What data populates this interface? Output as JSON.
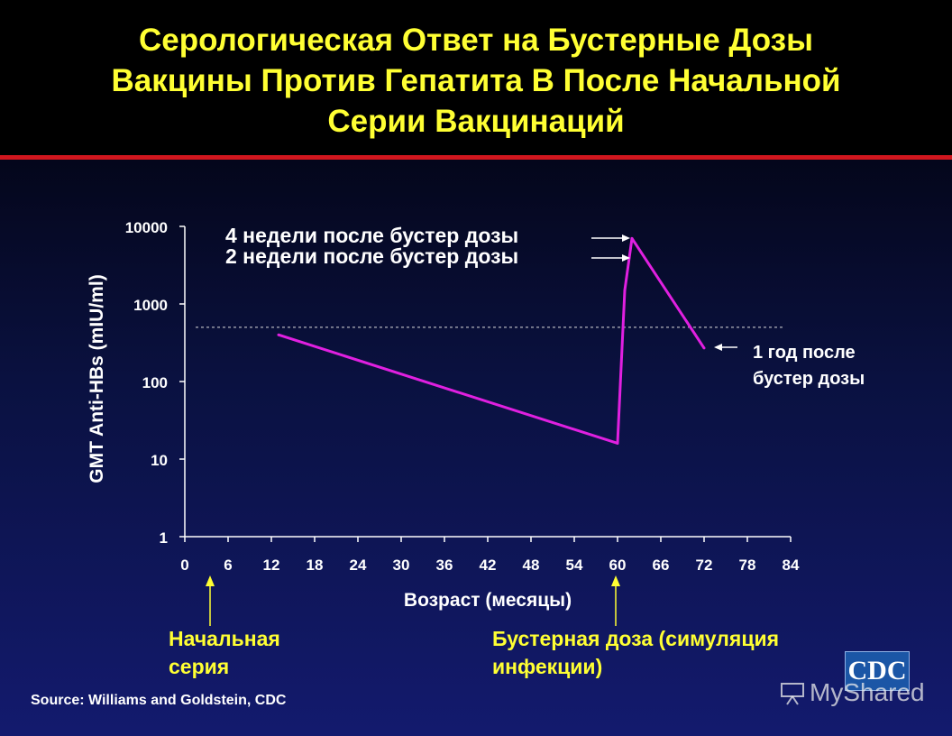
{
  "title": {
    "line1": "Серологическая Ответ на Бустерные Дозы",
    "line2": "Вакцины Против Гепатита В После Начальной",
    "line3": "Серии Вакцинаций"
  },
  "chart_data": {
    "type": "line",
    "ylabel": "GMT Anti-HBs (mIU/ml)",
    "xlabel": "Возраст (месяцы)",
    "yscale": "log",
    "ylim": [
      1,
      10000
    ],
    "xlim": [
      0,
      84
    ],
    "x_ticks": [
      "0",
      "6",
      "12",
      "18",
      "24",
      "30",
      "36",
      "42",
      "48",
      "54",
      "60",
      "66",
      "72",
      "78",
      "84"
    ],
    "y_ticks": [
      "1",
      "10",
      "100",
      "1000",
      "10000"
    ],
    "reference_line": {
      "y": 500,
      "style": "dashed"
    },
    "series": [
      {
        "color": "#e020e0",
        "points": [
          {
            "x": 13,
            "y": 400
          },
          {
            "x": 60,
            "y": 16
          },
          {
            "x": 61,
            "y": 1500
          },
          {
            "x": 62,
            "y": 7000
          },
          {
            "x": 72,
            "y": 270
          }
        ]
      }
    ],
    "annotations": [
      {
        "text": "4 недели после бустер дозы"
      },
      {
        "text": "2 недели после бустер дозы"
      },
      {
        "text_line1": "1 год после",
        "text_line2": "бустер дозы"
      }
    ]
  },
  "markers": [
    {
      "line1": "Начальная",
      "line2": "серия"
    },
    {
      "line1": "Бустерная доза (симуляция",
      "line2": "инфекции)"
    }
  ],
  "source": "Source: Williams and Goldstein, CDC",
  "logo": "CDC",
  "watermark": "MyShared"
}
